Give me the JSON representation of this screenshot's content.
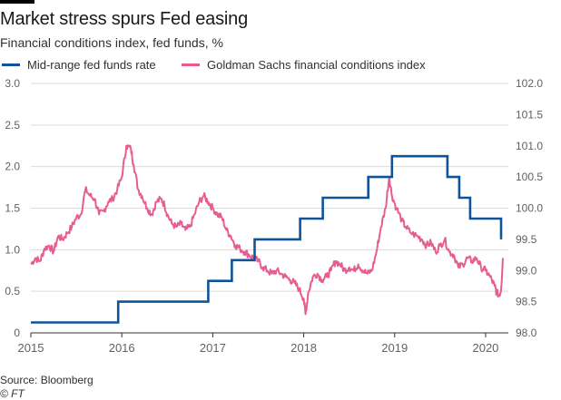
{
  "header": {
    "title": "Market stress spurs Fed easing",
    "subtitle": "Financial conditions index, fed funds, %"
  },
  "footer": {
    "source": "Source: Bloomberg",
    "brand": "© FT"
  },
  "colors": {
    "fed_funds": "#0f5499",
    "fci": "#e85d91",
    "grid": "#e6d9ce",
    "axis": "#33302e",
    "tick_text": "#66605c"
  },
  "chart_data": {
    "type": "line",
    "x_ticks": [
      "2015",
      "2016",
      "2017",
      "2018",
      "2019",
      "2020"
    ],
    "x_range": [
      2015.0,
      2020.25
    ],
    "left_axis": {
      "ticks": [
        "0",
        "0.5",
        "1.0",
        "1.5",
        "2.0",
        "2.5",
        "3.0"
      ],
      "ylim": [
        0,
        3.0
      ]
    },
    "right_axis": {
      "ticks": [
        "98.0",
        "98.5",
        "99.0",
        "99.5",
        "100.0",
        "100.5",
        "101.0",
        "101.5",
        "102.0"
      ],
      "ylim": [
        98.0,
        102.0
      ]
    },
    "grid": true,
    "legend_position": "top",
    "series": [
      {
        "name": "Mid-range fed funds rate",
        "axis": "left",
        "step": true,
        "points": [
          [
            2015.0,
            0.125
          ],
          [
            2015.96,
            0.125
          ],
          [
            2015.96,
            0.375
          ],
          [
            2016.95,
            0.375
          ],
          [
            2016.95,
            0.625
          ],
          [
            2017.21,
            0.625
          ],
          [
            2017.21,
            0.875
          ],
          [
            2017.46,
            0.875
          ],
          [
            2017.46,
            1.125
          ],
          [
            2017.96,
            1.125
          ],
          [
            2017.96,
            1.375
          ],
          [
            2018.21,
            1.375
          ],
          [
            2018.21,
            1.625
          ],
          [
            2018.46,
            1.625
          ],
          [
            2018.71,
            1.625
          ],
          [
            2018.71,
            1.875
          ],
          [
            2018.97,
            1.875
          ],
          [
            2018.97,
            2.125
          ],
          [
            2019.58,
            2.125
          ],
          [
            2019.58,
            1.875
          ],
          [
            2019.71,
            1.875
          ],
          [
            2019.71,
            1.625
          ],
          [
            2019.83,
            1.625
          ],
          [
            2019.83,
            1.375
          ],
          [
            2020.17,
            1.375
          ],
          [
            2020.17,
            1.125
          ]
        ]
      },
      {
        "name": "Goldman Sachs financial conditions index",
        "axis": "right",
        "step": false,
        "points": [
          [
            2015.0,
            99.1
          ],
          [
            2015.05,
            99.2
          ],
          [
            2015.1,
            99.15
          ],
          [
            2015.15,
            99.35
          ],
          [
            2015.2,
            99.4
          ],
          [
            2015.25,
            99.3
          ],
          [
            2015.3,
            99.55
          ],
          [
            2015.35,
            99.5
          ],
          [
            2015.4,
            99.6
          ],
          [
            2015.45,
            99.7
          ],
          [
            2015.5,
            99.85
          ],
          [
            2015.55,
            99.9
          ],
          [
            2015.6,
            100.3
          ],
          [
            2015.65,
            100.2
          ],
          [
            2015.7,
            100.15
          ],
          [
            2015.75,
            99.9
          ],
          [
            2015.8,
            99.95
          ],
          [
            2015.85,
            100.1
          ],
          [
            2015.9,
            100.15
          ],
          [
            2015.95,
            100.3
          ],
          [
            2016.0,
            100.5
          ],
          [
            2016.05,
            101.0
          ],
          [
            2016.1,
            100.95
          ],
          [
            2016.13,
            100.7
          ],
          [
            2016.18,
            100.3
          ],
          [
            2016.22,
            100.2
          ],
          [
            2016.28,
            100.0
          ],
          [
            2016.33,
            99.9
          ],
          [
            2016.38,
            100.1
          ],
          [
            2016.43,
            100.15
          ],
          [
            2016.47,
            100.05
          ],
          [
            2016.5,
            99.9
          ],
          [
            2016.55,
            99.75
          ],
          [
            2016.6,
            99.7
          ],
          [
            2016.65,
            99.75
          ],
          [
            2016.7,
            99.65
          ],
          [
            2016.75,
            99.7
          ],
          [
            2016.8,
            99.9
          ],
          [
            2016.85,
            100.1
          ],
          [
            2016.9,
            100.2
          ],
          [
            2016.95,
            100.1
          ],
          [
            2017.0,
            100.0
          ],
          [
            2017.05,
            99.9
          ],
          [
            2017.1,
            99.85
          ],
          [
            2017.15,
            99.65
          ],
          [
            2017.2,
            99.55
          ],
          [
            2017.25,
            99.4
          ],
          [
            2017.3,
            99.35
          ],
          [
            2017.35,
            99.3
          ],
          [
            2017.4,
            99.25
          ],
          [
            2017.45,
            99.2
          ],
          [
            2017.5,
            99.15
          ],
          [
            2017.55,
            99.05
          ],
          [
            2017.6,
            99.0
          ],
          [
            2017.65,
            98.95
          ],
          [
            2017.7,
            99.0
          ],
          [
            2017.75,
            98.95
          ],
          [
            2017.8,
            98.9
          ],
          [
            2017.85,
            98.85
          ],
          [
            2017.9,
            98.8
          ],
          [
            2017.95,
            98.7
          ],
          [
            2018.0,
            98.55
          ],
          [
            2018.02,
            98.3
          ],
          [
            2018.05,
            98.65
          ],
          [
            2018.1,
            98.9
          ],
          [
            2018.15,
            98.95
          ],
          [
            2018.2,
            98.85
          ],
          [
            2018.25,
            98.9
          ],
          [
            2018.3,
            99.0
          ],
          [
            2018.35,
            99.15
          ],
          [
            2018.4,
            99.1
          ],
          [
            2018.45,
            99.0
          ],
          [
            2018.5,
            99.05
          ],
          [
            2018.55,
            99.0
          ],
          [
            2018.6,
            99.1
          ],
          [
            2018.65,
            99.0
          ],
          [
            2018.7,
            98.95
          ],
          [
            2018.75,
            99.0
          ],
          [
            2018.8,
            99.3
          ],
          [
            2018.85,
            99.7
          ],
          [
            2018.9,
            100.0
          ],
          [
            2018.94,
            100.5
          ],
          [
            2018.97,
            100.2
          ],
          [
            2019.02,
            100.0
          ],
          [
            2019.08,
            99.8
          ],
          [
            2019.12,
            99.7
          ],
          [
            2019.18,
            99.6
          ],
          [
            2019.25,
            99.55
          ],
          [
            2019.3,
            99.5
          ],
          [
            2019.35,
            99.4
          ],
          [
            2019.4,
            99.45
          ],
          [
            2019.45,
            99.3
          ],
          [
            2019.5,
            99.4
          ],
          [
            2019.55,
            99.5
          ],
          [
            2019.6,
            99.3
          ],
          [
            2019.65,
            99.25
          ],
          [
            2019.7,
            99.05
          ],
          [
            2019.75,
            99.1
          ],
          [
            2019.8,
            99.2
          ],
          [
            2019.85,
            99.15
          ],
          [
            2019.9,
            99.2
          ],
          [
            2019.95,
            99.05
          ],
          [
            2020.0,
            99.0
          ],
          [
            2020.05,
            98.9
          ],
          [
            2020.1,
            98.75
          ],
          [
            2020.12,
            98.65
          ],
          [
            2020.15,
            98.6
          ],
          [
            2020.17,
            98.7
          ],
          [
            2020.19,
            99.2
          ]
        ]
      }
    ]
  }
}
